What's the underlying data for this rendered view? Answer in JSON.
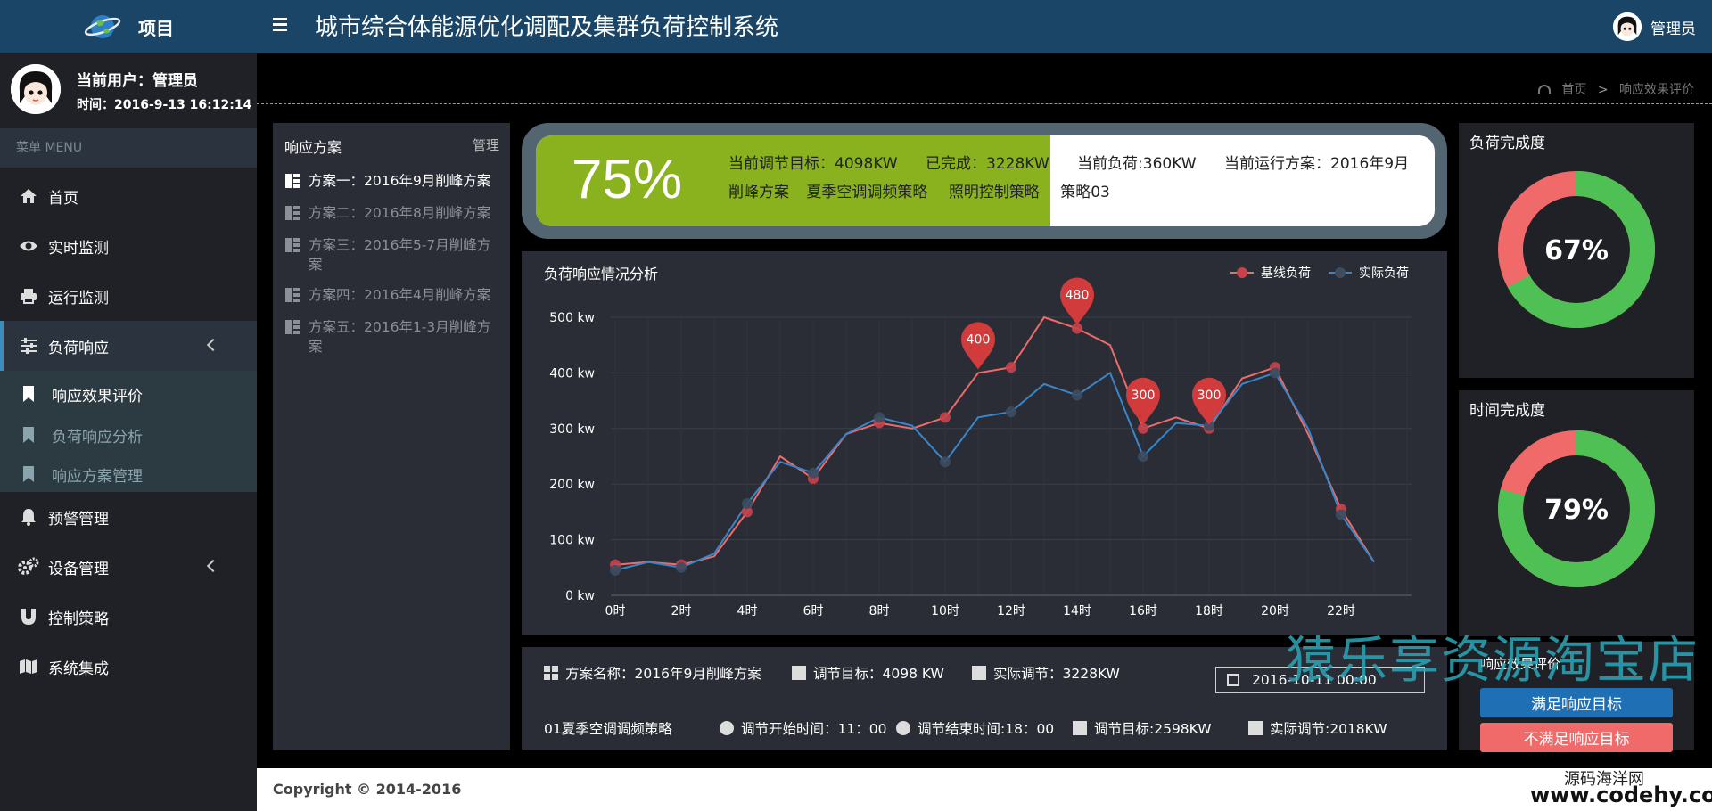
{
  "sidebar": {
    "brand": "项目",
    "user_line": "当前用户：管理员",
    "time_line": "时间：2016-9-13 16:12:14",
    "menu_header": "菜单 MENU",
    "items": [
      {
        "label": "首页",
        "icon": "home-icon"
      },
      {
        "label": "实时监测",
        "icon": "eye-icon"
      },
      {
        "label": "运行监测",
        "icon": "print-icon"
      },
      {
        "label": "负荷响应",
        "icon": "sliders-icon"
      },
      {
        "label": "预警管理",
        "icon": "bell-icon"
      },
      {
        "label": "设备管理",
        "icon": "gears-icon"
      },
      {
        "label": "控制策略",
        "icon": "magnet-icon"
      },
      {
        "label": "系统集成",
        "icon": "map-icon"
      }
    ],
    "subitems": [
      "响应效果评价",
      "负荷响应分析",
      "响应方案管理"
    ]
  },
  "header": {
    "title": "城市综合体能源优化调配及集群负荷控制系统",
    "admin": "管理员"
  },
  "breadcrumb": {
    "home": "首页",
    "sep": ">",
    "current": "响应效果评价"
  },
  "plans": {
    "title": "响应方案",
    "manage": "管理",
    "items": [
      "方案一：2016年9月削峰方案",
      "方案二：2016年8月削峰方案",
      "方案三：2016年5-7月削峰方案",
      "方案四：2016年4月削峰方案",
      "方案五：2016年1-3月削峰方案"
    ]
  },
  "progress": {
    "percent": 75,
    "percent_label": "75%",
    "parts": [
      "当前调节目标：4098KW",
      "已完成：3228KW",
      "当前负荷:360KW",
      "当前运行方案：2016年9月削峰方案",
      "夏季空调调频策略",
      "照明控制策略",
      "策略03"
    ],
    "fill_color": "#8ab21e"
  },
  "chart_data": {
    "type": "line",
    "title": "负荷响应情况分析",
    "x": [
      0,
      1,
      2,
      3,
      4,
      5,
      6,
      7,
      8,
      9,
      10,
      11,
      12,
      13,
      14,
      15,
      16,
      17,
      18,
      19,
      20,
      21,
      22,
      23
    ],
    "x_ticks": [
      "0时",
      "2时",
      "4时",
      "6时",
      "8时",
      "10时",
      "12时",
      "14时",
      "16时",
      "18时",
      "20时",
      "22时"
    ],
    "y_ticks": [
      "0 kw",
      "100 kw",
      "200 kw",
      "300 kw",
      "400 kw",
      "500 kw"
    ],
    "ylim": [
      0,
      500
    ],
    "series": [
      {
        "name": "基线负荷",
        "color": "#f06a6a",
        "values": [
          55,
          60,
          55,
          70,
          150,
          250,
          210,
          290,
          310,
          300,
          320,
          400,
          410,
          500,
          480,
          450,
          300,
          320,
          300,
          390,
          410,
          290,
          155,
          60
        ]
      },
      {
        "name": "实际负荷",
        "color": "#3a86c8",
        "values": [
          45,
          60,
          50,
          75,
          165,
          240,
          220,
          290,
          320,
          305,
          240,
          320,
          330,
          380,
          360,
          400,
          250,
          310,
          305,
          380,
          400,
          300,
          145,
          60
        ]
      }
    ],
    "markers": [
      {
        "x": 11,
        "label": "400"
      },
      {
        "x": 14,
        "label": "480"
      },
      {
        "x": 16,
        "label": "300"
      },
      {
        "x": 18,
        "label": "300"
      }
    ],
    "legend_position": "top-right",
    "grid": true
  },
  "info": {
    "plan_name": "方案名称：2016年9月削峰方案",
    "target": "调节目标：4098 KW",
    "actual": "实际调节：3228KW",
    "date": "2016-10-11 00:00",
    "strategy": "01夏季空调调频策略",
    "start": "调节开始时间：11：00",
    "end": "调节结束时间:18：00",
    "target2": "调节目标:2598KW",
    "actual2": "实际调节:2018KW"
  },
  "load_completion": {
    "title": "负荷完成度",
    "value": 67,
    "label": "67%"
  },
  "time_completion": {
    "title": "时间完成度",
    "value": 79,
    "label": "79%"
  },
  "donut_colors": {
    "done": "#4fc154",
    "rest": "#f06a6a"
  },
  "response": {
    "title": "响应效果评价",
    "ok": "满足响应目标",
    "fail": "不满足响应目标"
  },
  "footer": {
    "copyright": "Copyright © 2014-2016"
  },
  "watermark": {
    "shop": "猿乐享资源淘宝店",
    "site_name": "源码海洋网",
    "site_url": "www.codehy.com"
  }
}
